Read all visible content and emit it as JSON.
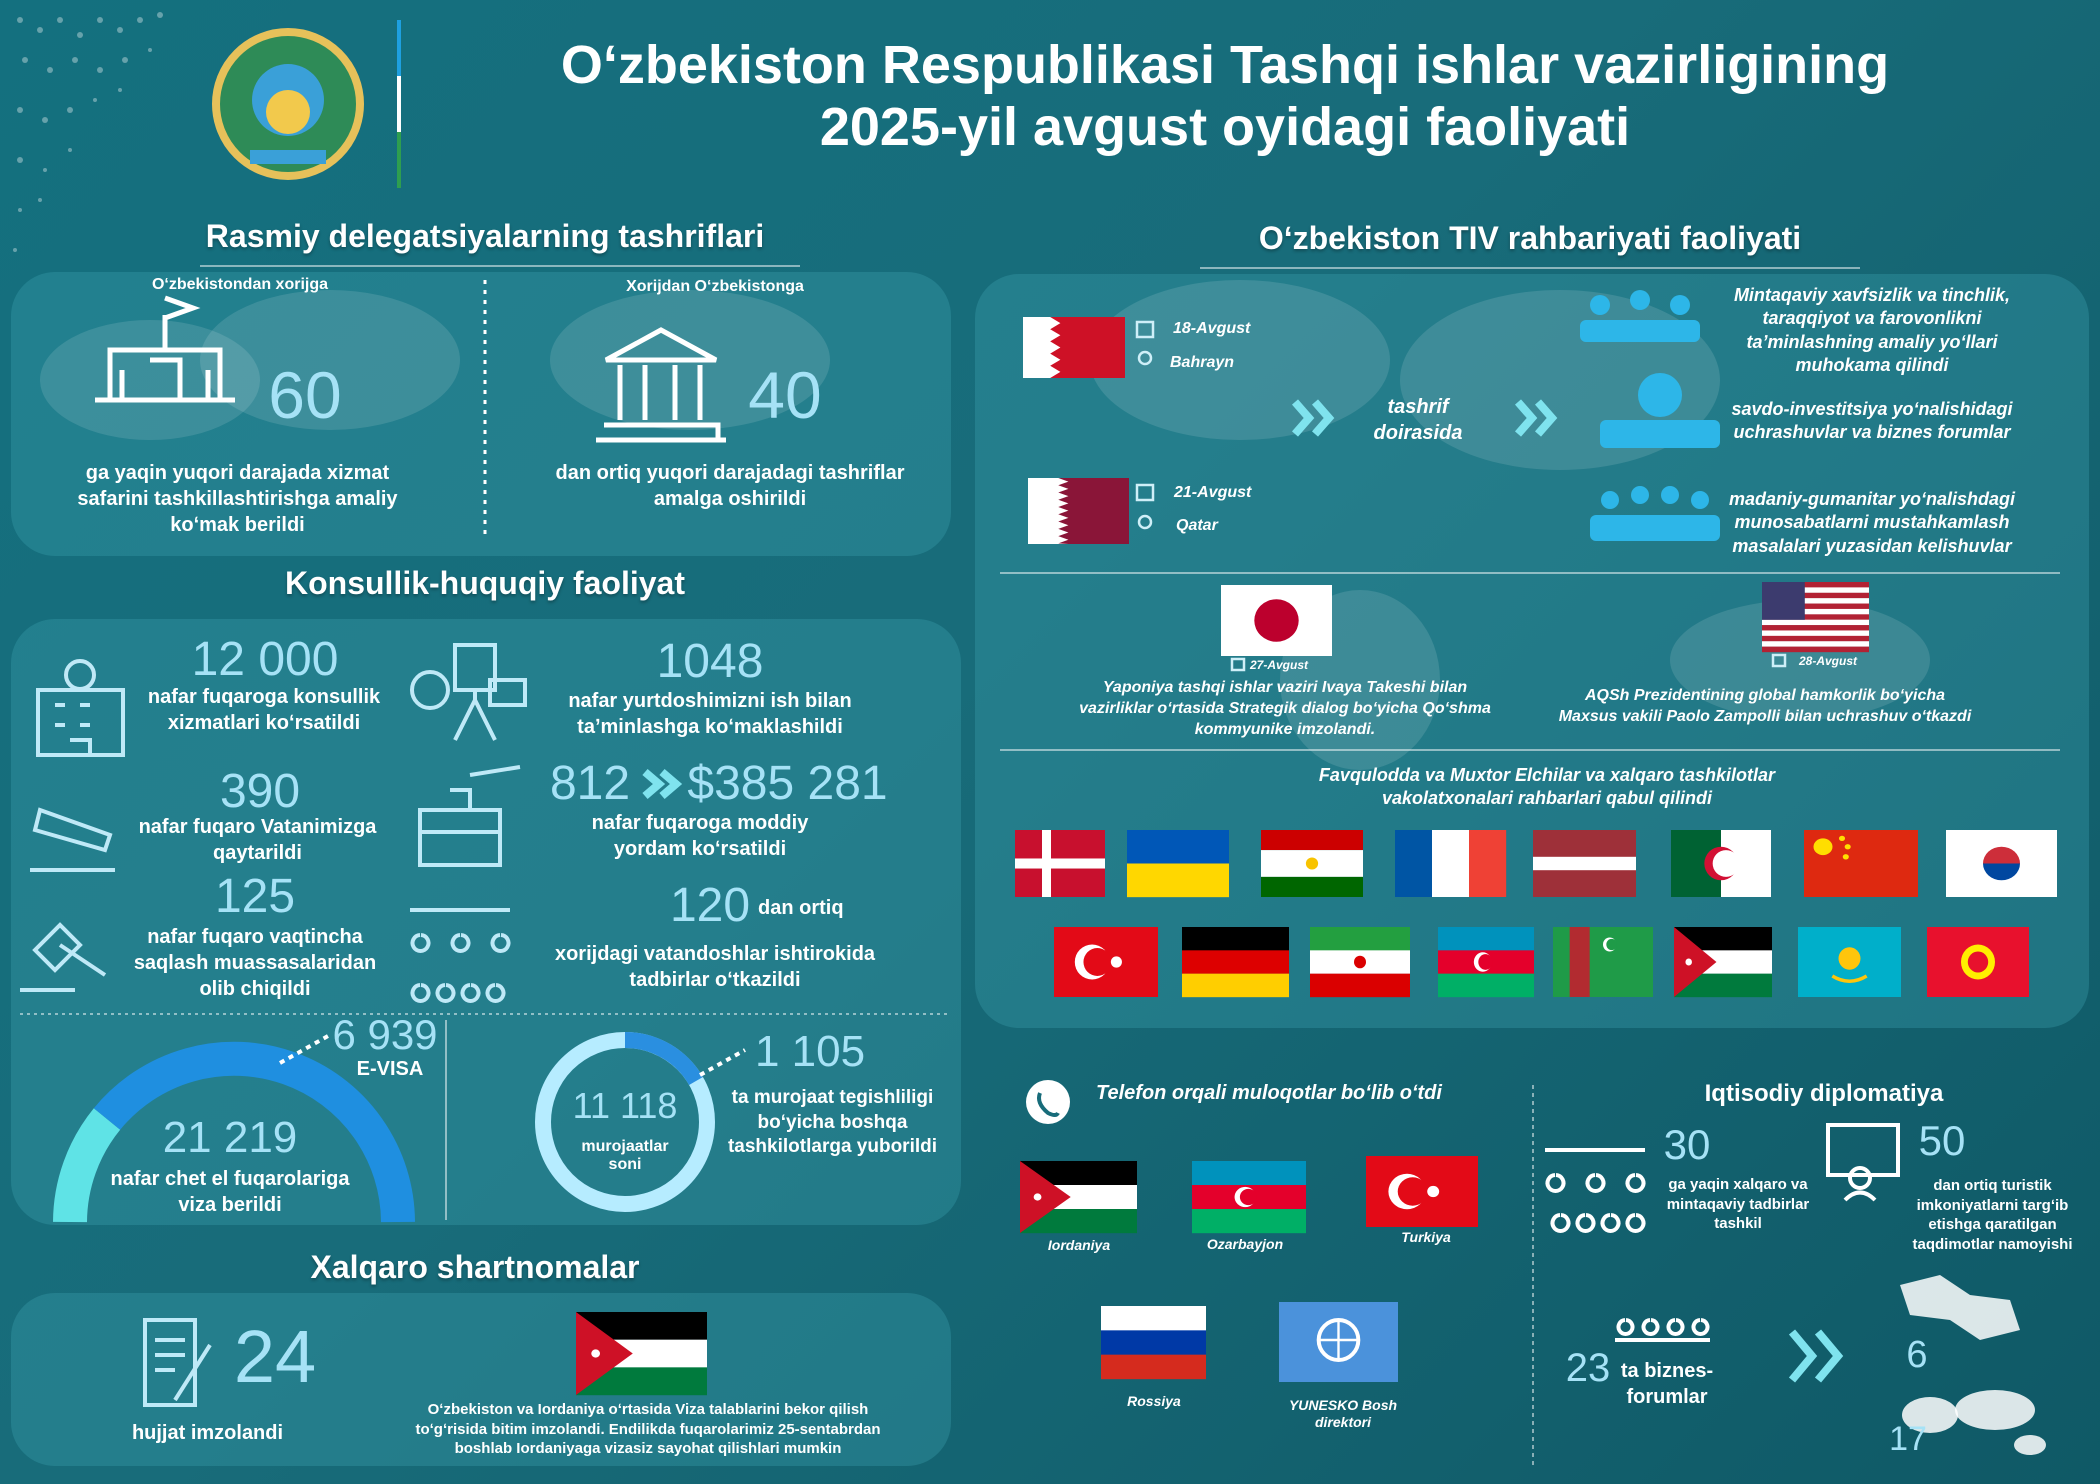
{
  "header": {
    "title_line1": "Oʻzbekiston Respublikasi Tashqi ishlar vazirligining",
    "title_line2": "2025-yil avgust oyidagi faoliyati"
  },
  "delegations": {
    "title": "Rasmiy delegatsiyalarning tashriflari",
    "outgoing": {
      "label": "Oʻzbekistondan xorijga",
      "number": "60",
      "text": "ga yaqin yuqori darajada xizmat safarini tashkillashtirishga amaliy koʻmak berildi"
    },
    "incoming": {
      "label": "Xorijdan Oʻzbekistonga",
      "number": "40",
      "text": "dan ortiq yuqori darajadagi tashriflar amalga oshirildi"
    }
  },
  "consular": {
    "title": "Konsullik-huquqiy faoliyat",
    "items": [
      {
        "number": "12 000",
        "text": "nafar fuqaroga konsullik xizmatlari koʻrsatildi"
      },
      {
        "number": "390",
        "text": "nafar fuqaro Vatanimizga qaytarildi"
      },
      {
        "number": "125",
        "text": "nafar fuqaro vaqtincha saqlash muassasalaridan olib chiqildi"
      },
      {
        "number": "1048",
        "text": "nafar yurtdoshimizni ish bilan taʼminlashga koʻmaklashildi"
      },
      {
        "number": "812",
        "number2": "$385 281",
        "text": "nafar fuqaroga moddiy yordam koʻrsatildi"
      },
      {
        "number": "120",
        "suffix": "dan ortiq",
        "text": "xorijdagi vatandoshlar ishtirokida tadbirlar oʻtkazildi"
      }
    ],
    "visa": {
      "evisa_number": "6 939",
      "evisa_label": "E-VISA",
      "number": "21 219",
      "text": "nafar chet el fuqarolariga viza berildi"
    },
    "appeals": {
      "number": "11 118",
      "label": "murojaatlar soni",
      "forwarded_number": "1 105",
      "forwarded_text": "ta murojaat tegishliligi boʻyicha boshqa tashkilotlarga yuborildi"
    }
  },
  "agreements": {
    "title": "Xalqaro shartnomalar",
    "number": "24",
    "label": "hujjat imzolandi",
    "text": "Oʻzbekiston va Iordaniya oʻrtasida Viza talablarini bekor qilish toʻgʻrisida bitim imzolandi. Endilikda fuqarolarimiz 25-sentabrdan boshlab Iordaniyaga vizasiz sayohat qilishlari mumkin"
  },
  "leadership": {
    "title": "Oʻzbekiston TIV rahbariyati faoliyati",
    "visits": [
      {
        "date": "18-Avgust",
        "place": "Bahrayn"
      },
      {
        "date": "21-Avgust",
        "place": "Qatar"
      }
    ],
    "visit_scope": "tashrif doirasida",
    "topics": [
      "Mintaqaviy xavfsizlik va tinchlik, taraqqiyot va farovonlikni taʼminlashning amaliy yoʻllari muhokama qilindi",
      "savdo-investitsiya yoʻnalishidagi uchrashuvlar va biznes forumlar",
      "madaniy-gumanitar yoʻnalishdagi munosabatlarni mustahkamlash masalalari yuzasidan kelishuvlar"
    ],
    "meetings": [
      {
        "date": "27-Avgust",
        "text": "Yaponiya tashqi ishlar vaziri Ivaya Takeshi bilan vazirliklar oʻrtasida Strategik dialog boʻyicha Qoʻshma kommyunike imzolandi."
      },
      {
        "date": "28-Avgust",
        "text": "AQSh Prezidentining global hamkorlik boʻyicha Maxsus vakili Paolo Zampolli bilan uchrashuv oʻtkazdi"
      }
    ],
    "ambassadors": "Favqulodda va Muxtor Elchilar va xalqaro tashkilotlar vakolatxonalari rahbarlari qabul qilindi"
  },
  "phone_calls": {
    "title": "Telefon orqali muloqotlar boʻlib oʻtdi",
    "partners": [
      "Iordaniya",
      "Ozarbayjon",
      "Turkiya",
      "Rossiya",
      "YUNESKO Bosh direktori"
    ]
  },
  "economic": {
    "title": "Iqtisodiy diplomatiya",
    "items": [
      {
        "number": "30",
        "text": "ga yaqin xalqaro va mintaqaviy tadbirlar tashkil"
      },
      {
        "number": "50",
        "text": "dan ortiq turistik imkoniyatlarni targʻib etishga qaratilgan taqdimotlar namoyishi"
      }
    ],
    "forums": {
      "number": "23",
      "text": "ta biznes-forumlar",
      "domestic": "6",
      "abroad": "17"
    }
  }
}
